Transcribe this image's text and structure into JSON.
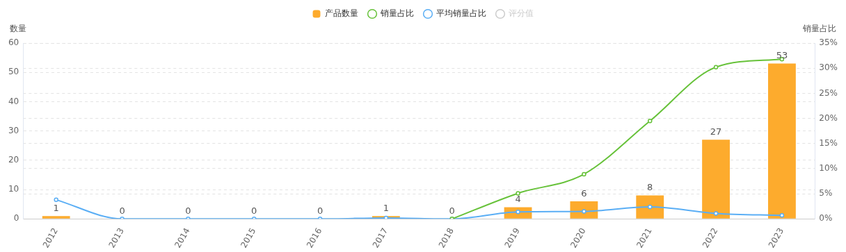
{
  "chart_data": {
    "type": "bar",
    "categories": [
      "2012",
      "2013",
      "2014",
      "2015",
      "2016",
      "2017",
      "2018",
      "2019",
      "2020",
      "2021",
      "2022",
      "2023"
    ],
    "series": [
      {
        "name": "产品数量",
        "color": "#fdab2d",
        "values": [
          1,
          0,
          0,
          0,
          0,
          1,
          0,
          4,
          6,
          8,
          27,
          53
        ],
        "value_labels": [
          "1",
          "0",
          "0",
          "0",
          "0",
          "1",
          "0",
          "4",
          "6",
          "8",
          "27",
          "53"
        ]
      },
      {
        "name": "销量占比",
        "type": "line",
        "axis": "y2",
        "color": "#67c23a",
        "marker": "circle",
        "values": [
          null,
          null,
          null,
          null,
          null,
          null,
          0,
          5.1,
          8.9,
          19.5,
          30.2,
          31.8
        ]
      },
      {
        "name": "平均销量占比",
        "type": "line",
        "axis": "y2",
        "color": "#5aaef5",
        "marker": "circle",
        "values": [
          3.8,
          0,
          0,
          0,
          0,
          0.2,
          0,
          1.4,
          1.5,
          2.4,
          1.1,
          0.7
        ]
      },
      {
        "name": "评分值",
        "type": "line",
        "axis": "y2",
        "color": "#cccccc",
        "marker": "circle",
        "values": [
          null,
          null,
          null,
          null,
          null,
          null,
          null,
          null,
          null,
          null,
          null,
          null
        ]
      }
    ],
    "ylabel": "数量",
    "y2label": "销量占比",
    "ylim": [
      0,
      60
    ],
    "yticks": [
      0,
      10,
      20,
      30,
      40,
      50,
      60
    ],
    "y2lim": [
      0,
      35
    ],
    "y2ticks": [
      {
        "value": 0,
        "label": "0%"
      },
      {
        "value": 5,
        "label": "5%"
      },
      {
        "value": 10,
        "label": "10%"
      },
      {
        "value": 15,
        "label": "15%"
      },
      {
        "value": 20,
        "label": "20%"
      },
      {
        "value": 25,
        "label": "25%"
      },
      {
        "value": 30,
        "label": "30%"
      },
      {
        "value": 35,
        "label": "35%"
      }
    ],
    "grid": true,
    "legend": "top"
  }
}
